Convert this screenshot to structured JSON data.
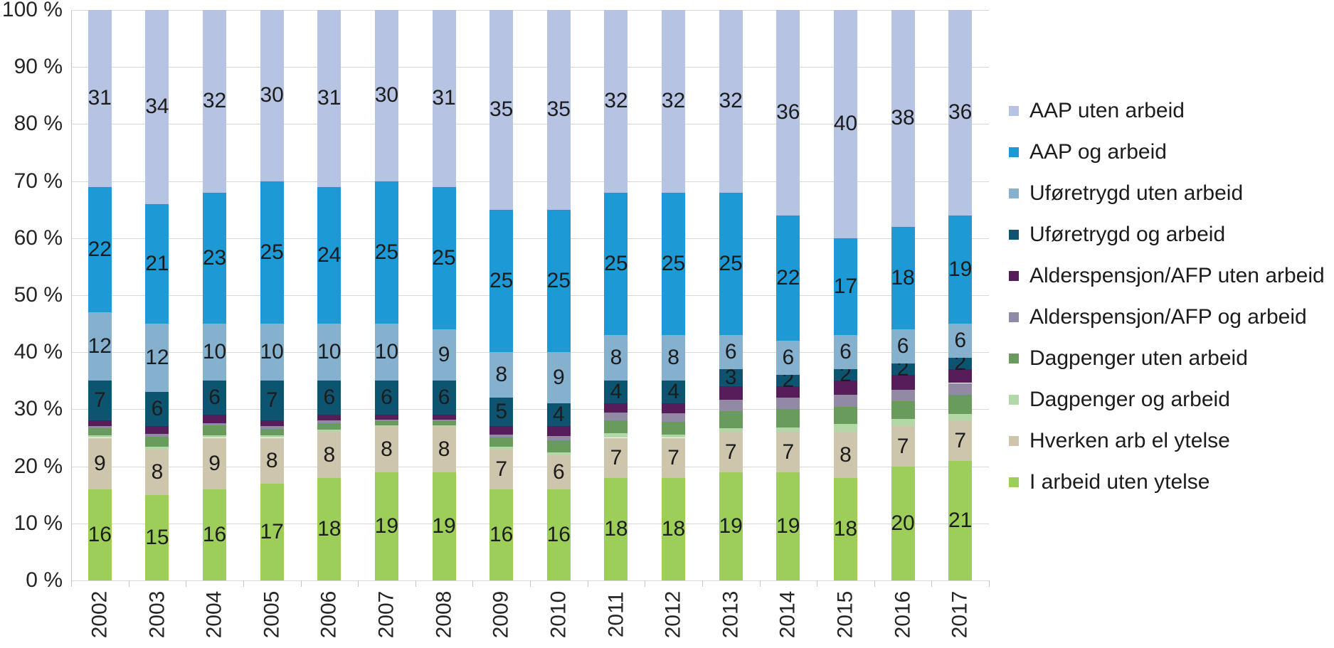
{
  "chart_data": {
    "type": "bar",
    "stacked": true,
    "percent_stacked": true,
    "title": "",
    "xlabel": "",
    "ylabel": "",
    "ylim": [
      0,
      100
    ],
    "ytick_labels": [
      "0 %",
      "10 %",
      "20 %",
      "30 %",
      "40 %",
      "50 %",
      "60 %",
      "70 %",
      "80 %",
      "90 %",
      "100 %"
    ],
    "grid": true,
    "legend_position": "right",
    "gridline_color": "#d8d8d8",
    "axis_color": "#c3c3c3",
    "label_color": "#1c1c1c",
    "categories": [
      "2002",
      "2003",
      "2004",
      "2005",
      "2006",
      "2007",
      "2008",
      "2009",
      "2010",
      "2011",
      "2012",
      "2013",
      "2014",
      "2015",
      "2016",
      "2017"
    ],
    "series": [
      {
        "name": "AAP uten arbeid",
        "color": "#b7c3e3",
        "show_labels": true,
        "values": [
          31,
          34,
          32,
          30,
          31,
          30,
          31,
          35,
          35,
          32,
          32,
          32,
          36,
          40,
          38,
          36
        ]
      },
      {
        "name": "AAP og arbeid",
        "color": "#1d9ad6",
        "show_labels": true,
        "values": [
          22,
          21,
          23,
          25,
          24,
          25,
          25,
          25,
          25,
          25,
          25,
          25,
          22,
          17,
          18,
          19
        ]
      },
      {
        "name": "Uføretrygd uten arbeid",
        "color": "#85b1ce",
        "show_labels": true,
        "values": [
          12,
          12,
          10,
          10,
          10,
          10,
          9,
          8,
          9,
          8,
          8,
          6,
          6,
          6,
          6,
          6
        ]
      },
      {
        "name": "Uføretrygd og arbeid",
        "color": "#0d5470",
        "show_labels": true,
        "values": [
          7,
          6,
          6,
          7,
          6,
          6,
          6,
          5,
          4,
          4,
          4,
          3,
          2,
          2,
          2,
          2
        ]
      },
      {
        "name": "Alderspensjon/AFP uten arbeid",
        "color": "#571c5a",
        "show_labels": false,
        "values": [
          1.0,
          1.3,
          1.4,
          1.0,
          1.0,
          0.8,
          0.8,
          1.5,
          1.7,
          1.6,
          1.7,
          2.3,
          2.0,
          2.4,
          2.6,
          2.4
        ]
      },
      {
        "name": "Alderspensjon/AFP og arbeid",
        "color": "#928aa5",
        "show_labels": false,
        "values": [
          0.3,
          0.5,
          0.4,
          0.4,
          0.4,
          0.3,
          0.3,
          0.4,
          0.7,
          1.3,
          1.5,
          2.0,
          2.0,
          2.2,
          2.0,
          2.0
        ]
      },
      {
        "name": "Dagpenger uten arbeid",
        "color": "#699b5c",
        "show_labels": false,
        "values": [
          1.3,
          1.8,
          1.8,
          1.2,
          1.2,
          0.7,
          0.7,
          1.7,
          2.1,
          2.3,
          2.2,
          3.0,
          3.2,
          3.0,
          3.1,
          3.4
        ]
      },
      {
        "name": "Dagpenger og arbeid",
        "color": "#b3d8a7",
        "show_labels": false,
        "values": [
          0.4,
          0.4,
          0.4,
          0.4,
          0.4,
          0.2,
          0.2,
          0.4,
          0.5,
          0.8,
          0.6,
          0.7,
          0.8,
          1.4,
          1.3,
          1.2
        ]
      },
      {
        "name": "Hverken arb el ytelse",
        "color": "#cec5ad",
        "show_labels": true,
        "values": [
          9,
          8,
          9,
          8,
          8,
          8,
          8,
          7,
          6,
          7,
          7,
          7,
          7,
          8,
          7,
          7
        ]
      },
      {
        "name": "I arbeid uten ytelse",
        "color": "#9ece5a",
        "show_labels": true,
        "values": [
          16,
          15,
          16,
          17,
          18,
          19,
          19,
          16,
          16,
          18,
          18,
          19,
          19,
          18,
          20,
          21
        ]
      }
    ]
  }
}
